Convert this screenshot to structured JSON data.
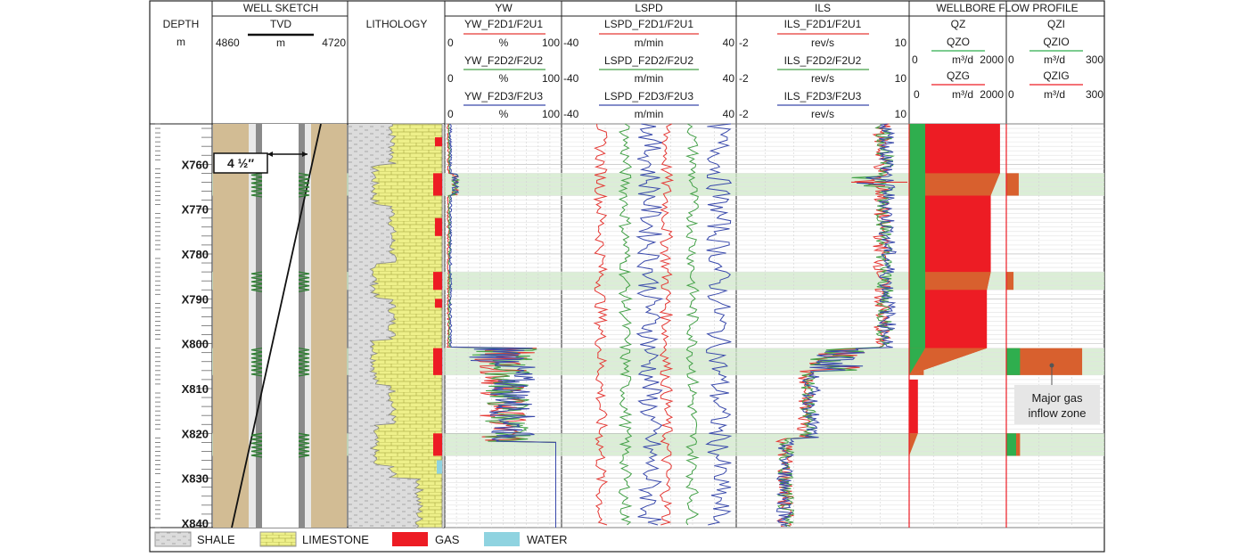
{
  "tracks": {
    "depth": {
      "title": "DEPTH",
      "unit": "m"
    },
    "well_sketch": {
      "title": "WELL SKETCH",
      "tvd_label": "TVD",
      "tvd_unit": "m",
      "tvd_min": "4860",
      "tvd_max": "4720",
      "casing_label": "4 ½″"
    },
    "lithology": {
      "title": "LITHOLOGY"
    },
    "yw": {
      "title": "YW",
      "curves": [
        {
          "name": "YW_F2D1/F2U1",
          "unit": "%",
          "min": "0",
          "max": "100",
          "color": "#e53935"
        },
        {
          "name": "YW_F2D2/F2U2",
          "unit": "%",
          "min": "0",
          "max": "100",
          "color": "#43a047"
        },
        {
          "name": "YW_F2D3/F2U3",
          "unit": "%",
          "min": "0",
          "max": "100",
          "color": "#3949ab"
        }
      ]
    },
    "lspd": {
      "title": "LSPD",
      "curves": [
        {
          "name": "LSPD_F2D1/F2U1",
          "unit": "m/min",
          "min": "-40",
          "max": "40",
          "color": "#e53935"
        },
        {
          "name": "LSPD_F2D2/F2U2",
          "unit": "m/min",
          "min": "-40",
          "max": "40",
          "color": "#43a047"
        },
        {
          "name": "LSPD_F2D3/F2U3",
          "unit": "m/min",
          "min": "-40",
          "max": "40",
          "color": "#3949ab"
        }
      ]
    },
    "ils": {
      "title": "ILS",
      "curves": [
        {
          "name": "ILS_F2D1/F2U1",
          "unit": "rev/s",
          "min": "-2",
          "max": "10",
          "color": "#e53935"
        },
        {
          "name": "ILS_F2D2/F2U2",
          "unit": "rev/s",
          "min": "-2",
          "max": "10",
          "color": "#43a047"
        },
        {
          "name": "ILS_F2D3/F2U3",
          "unit": "rev/s",
          "min": "-2",
          "max": "10",
          "color": "#3949ab"
        }
      ]
    },
    "flow": {
      "title": "WELLBORE FLOW PROFILE",
      "qz": {
        "title": "QZ",
        "curves": [
          {
            "name": "QZO",
            "unit": "m³/d",
            "min": "0",
            "max": "2000",
            "color": "#43a047"
          },
          {
            "name": "QZG",
            "unit": "m³/d",
            "min": "0",
            "max": "2000",
            "color": "#e53935"
          }
        ]
      },
      "qzi": {
        "title": "QZI",
        "curves": [
          {
            "name": "QZIO",
            "unit": "m³/d",
            "min": "0",
            "max": "300",
            "color": "#43a047"
          },
          {
            "name": "QZIG",
            "unit": "m³/d",
            "min": "0",
            "max": "300",
            "color": "#e53935"
          }
        ]
      }
    }
  },
  "depth_ticks": [
    "X760",
    "X770",
    "X780",
    "X790",
    "X800",
    "X810",
    "X820",
    "X830",
    "X840"
  ],
  "depth_range": [
    4751,
    4841
  ],
  "highlight_zones": [
    [
      4762,
      4767
    ],
    [
      4784,
      4788
    ],
    [
      4801,
      4807
    ],
    [
      4820,
      4825
    ]
  ],
  "annotation": {
    "line1": "Major gas",
    "line2": "inflow zone"
  },
  "legend": [
    {
      "label": "SHALE",
      "key": "shale"
    },
    {
      "label": "LIMESTONE",
      "key": "limestone"
    },
    {
      "label": "GAS",
      "key": "gas"
    },
    {
      "label": "WATER",
      "key": "water"
    }
  ],
  "colors": {
    "shale": "#d9d9d9",
    "limestone": "#eef08a",
    "gas": "#ed1c24",
    "water": "#8fd3e0",
    "highlight": "#cfe8c8",
    "tan": "#d2bc94",
    "pipe": "#8a8a8a",
    "gas_orange": "#d8602e",
    "oil_green": "#2fae4e"
  }
}
